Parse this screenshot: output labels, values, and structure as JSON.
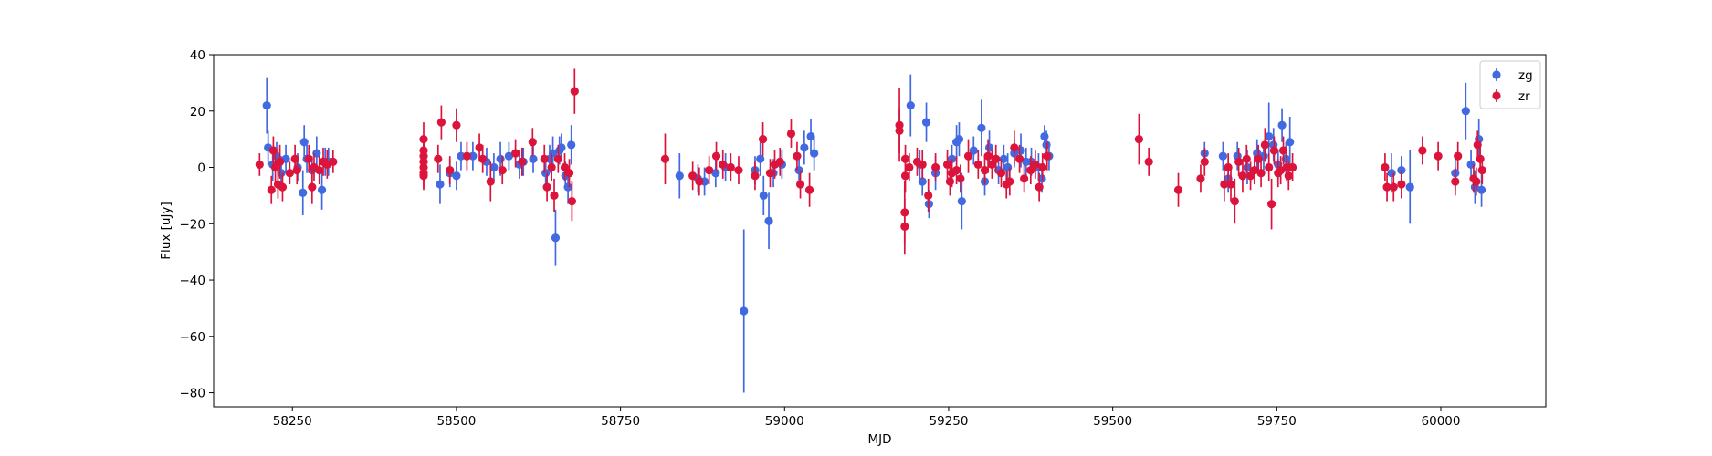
{
  "chart_data": {
    "type": "scatter",
    "title": "",
    "xlabel": "MJD",
    "ylabel": "Flux [uJy]",
    "xlim": [
      58130,
      60160
    ],
    "ylim": [
      -85,
      40
    ],
    "xticks": [
      58250,
      58500,
      58750,
      59000,
      59250,
      59500,
      59750,
      60000
    ],
    "yticks": [
      40,
      20,
      0,
      -20,
      -40,
      -60,
      -80
    ],
    "grid": false,
    "legend_position": "top-right",
    "series": [
      {
        "name": "zg",
        "color": "#4169e1",
        "points": [
          [
            58211,
            22,
            10
          ],
          [
            58213,
            7,
            6
          ],
          [
            58220,
            1,
            6
          ],
          [
            58226,
            4,
            5
          ],
          [
            58233,
            -2,
            6
          ],
          [
            58240,
            3,
            5
          ],
          [
            58258,
            0,
            5
          ],
          [
            58266,
            -9,
            8
          ],
          [
            58268,
            9,
            6
          ],
          [
            58272,
            3,
            5
          ],
          [
            58280,
            -1,
            5
          ],
          [
            58287,
            5,
            6
          ],
          [
            58295,
            -8,
            7
          ],
          [
            58300,
            2,
            5
          ],
          [
            58305,
            2,
            5
          ],
          [
            58475,
            -6,
            7
          ],
          [
            58490,
            -2,
            5
          ],
          [
            58500,
            -3,
            5
          ],
          [
            58507,
            4,
            5
          ],
          [
            58525,
            4,
            5
          ],
          [
            58546,
            2,
            5
          ],
          [
            58557,
            0,
            5
          ],
          [
            58567,
            3,
            6
          ],
          [
            58580,
            4,
            5
          ],
          [
            58596,
            1,
            5
          ],
          [
            58602,
            2,
            5
          ],
          [
            58617,
            3,
            5
          ],
          [
            58636,
            -2,
            6
          ],
          [
            58642,
            3,
            5
          ],
          [
            58647,
            5,
            6
          ],
          [
            58651,
            -25,
            10
          ],
          [
            58657,
            6,
            5
          ],
          [
            58660,
            7,
            5
          ],
          [
            58666,
            -3,
            5
          ],
          [
            58670,
            -7,
            6
          ],
          [
            58675,
            8,
            7
          ],
          [
            58840,
            -3,
            8
          ],
          [
            58868,
            -4,
            5
          ],
          [
            58878,
            -5,
            5
          ],
          [
            58895,
            -2,
            5
          ],
          [
            58910,
            0,
            5
          ],
          [
            58938,
            -51,
            29
          ],
          [
            58955,
            -1,
            5
          ],
          [
            58963,
            3,
            6
          ],
          [
            58968,
            -10,
            7
          ],
          [
            58976,
            -19,
            10
          ],
          [
            58983,
            -2,
            5
          ],
          [
            58996,
            1,
            5
          ],
          [
            59022,
            -1,
            5
          ],
          [
            59030,
            7,
            6
          ],
          [
            59040,
            11,
            6
          ],
          [
            59045,
            5,
            6
          ],
          [
            59192,
            22,
            11
          ],
          [
            59206,
            1,
            5
          ],
          [
            59210,
            -5,
            5
          ],
          [
            59216,
            16,
            7
          ],
          [
            59220,
            -13,
            5
          ],
          [
            59230,
            -2,
            6
          ],
          [
            59255,
            3,
            5
          ],
          [
            59262,
            9,
            6
          ],
          [
            59266,
            10,
            6
          ],
          [
            59270,
            -12,
            10
          ],
          [
            59288,
            6,
            5
          ],
          [
            59300,
            14,
            10
          ],
          [
            59305,
            -5,
            5
          ],
          [
            59312,
            7,
            6
          ],
          [
            59326,
            -1,
            5
          ],
          [
            59334,
            3,
            5
          ],
          [
            59340,
            0,
            5
          ],
          [
            59350,
            5,
            5
          ],
          [
            59360,
            6,
            6
          ],
          [
            59368,
            2,
            5
          ],
          [
            59376,
            2,
            5
          ],
          [
            59387,
            0,
            5
          ],
          [
            59392,
            -4,
            5
          ],
          [
            59396,
            11,
            4
          ],
          [
            59399,
            8,
            5
          ],
          [
            59403,
            4,
            5
          ],
          [
            59640,
            5,
            4
          ],
          [
            59668,
            4,
            5
          ],
          [
            59676,
            -4,
            5
          ],
          [
            59690,
            4,
            5
          ],
          [
            59705,
            0,
            6
          ],
          [
            59720,
            5,
            5
          ],
          [
            59730,
            4,
            5
          ],
          [
            59738,
            11,
            12
          ],
          [
            59745,
            8,
            6
          ],
          [
            59752,
            1,
            5
          ],
          [
            59758,
            15,
            6
          ],
          [
            59764,
            3,
            6
          ],
          [
            59770,
            9,
            9
          ],
          [
            59925,
            -2,
            7
          ],
          [
            59940,
            -1,
            5
          ],
          [
            59953,
            -7,
            13
          ],
          [
            60022,
            -2,
            6
          ],
          [
            60038,
            20,
            10
          ],
          [
            60046,
            1,
            5
          ],
          [
            60052,
            -7,
            6
          ],
          [
            60058,
            10,
            7
          ],
          [
            60062,
            -8,
            6
          ]
        ]
      },
      {
        "name": "zr",
        "color": "#dc143c",
        "points": [
          [
            58200,
            1,
            4
          ],
          [
            58218,
            -8,
            5
          ],
          [
            58221,
            6,
            5
          ],
          [
            58224,
            0,
            5
          ],
          [
            58228,
            -6,
            5
          ],
          [
            58231,
            2,
            6
          ],
          [
            58235,
            -7,
            5
          ],
          [
            58246,
            -2,
            4
          ],
          [
            58254,
            3,
            5
          ],
          [
            58257,
            -1,
            5
          ],
          [
            58275,
            3,
            5
          ],
          [
            58280,
            -7,
            6
          ],
          [
            58283,
            0,
            5
          ],
          [
            58291,
            -1,
            5
          ],
          [
            58297,
            2,
            5
          ],
          [
            58303,
            1,
            5
          ],
          [
            58312,
            2,
            4
          ],
          [
            58450,
            10,
            6
          ],
          [
            58450,
            6,
            5
          ],
          [
            58450,
            4,
            5
          ],
          [
            58450,
            2,
            5
          ],
          [
            58450,
            0,
            5
          ],
          [
            58450,
            -2,
            5
          ],
          [
            58450,
            -3,
            5
          ],
          [
            58472,
            3,
            5
          ],
          [
            58477,
            16,
            6
          ],
          [
            58490,
            -1,
            5
          ],
          [
            58500,
            15,
            6
          ],
          [
            58516,
            4,
            5
          ],
          [
            58535,
            7,
            5
          ],
          [
            58540,
            3,
            5
          ],
          [
            58552,
            -5,
            7
          ],
          [
            58570,
            -1,
            5
          ],
          [
            58590,
            5,
            5
          ],
          [
            58600,
            2,
            5
          ],
          [
            58616,
            9,
            5
          ],
          [
            58634,
            3,
            5
          ],
          [
            58638,
            -7,
            5
          ],
          [
            58645,
            0,
            5
          ],
          [
            58649,
            -10,
            6
          ],
          [
            58655,
            3,
            5
          ],
          [
            58665,
            0,
            5
          ],
          [
            58672,
            -2,
            5
          ],
          [
            58676,
            -12,
            7
          ],
          [
            58680,
            27,
            8
          ],
          [
            58818,
            3,
            9
          ],
          [
            58860,
            -3,
            5
          ],
          [
            58870,
            -5,
            5
          ],
          [
            58885,
            -1,
            5
          ],
          [
            58896,
            4,
            5
          ],
          [
            58906,
            1,
            5
          ],
          [
            58918,
            0,
            5
          ],
          [
            58930,
            -1,
            5
          ],
          [
            58955,
            -3,
            5
          ],
          [
            58967,
            10,
            6
          ],
          [
            58978,
            -2,
            5
          ],
          [
            58985,
            1,
            5
          ],
          [
            58993,
            2,
            5
          ],
          [
            59010,
            12,
            5
          ],
          [
            59019,
            4,
            5
          ],
          [
            59024,
            -6,
            5
          ],
          [
            59038,
            -8,
            6
          ],
          [
            59175,
            15,
            13
          ],
          [
            59175,
            13,
            8
          ],
          [
            59183,
            -21,
            10
          ],
          [
            59183,
            -16,
            11
          ],
          [
            59184,
            -3,
            6
          ],
          [
            59184,
            3,
            5
          ],
          [
            59190,
            0,
            5
          ],
          [
            59202,
            2,
            5
          ],
          [
            59210,
            1,
            5
          ],
          [
            59219,
            -10,
            6
          ],
          [
            59230,
            0,
            5
          ],
          [
            59248,
            1,
            5
          ],
          [
            59252,
            -5,
            5
          ],
          [
            59255,
            -2,
            5
          ],
          [
            59262,
            -1,
            5
          ],
          [
            59268,
            -4,
            5
          ],
          [
            59280,
            4,
            6
          ],
          [
            59295,
            1,
            5
          ],
          [
            59305,
            -1,
            5
          ],
          [
            59310,
            4,
            6
          ],
          [
            59316,
            1,
            5
          ],
          [
            59322,
            3,
            5
          ],
          [
            59330,
            -2,
            5
          ],
          [
            59338,
            -6,
            5
          ],
          [
            59343,
            -5,
            5
          ],
          [
            59350,
            7,
            6
          ],
          [
            59358,
            3,
            5
          ],
          [
            59365,
            -4,
            5
          ],
          [
            59375,
            -1,
            5
          ],
          [
            59382,
            1,
            5
          ],
          [
            59388,
            -7,
            5
          ],
          [
            59393,
            0,
            5
          ],
          [
            59400,
            4,
            5
          ],
          [
            59540,
            10,
            9
          ],
          [
            59555,
            2,
            5
          ],
          [
            59600,
            -8,
            6
          ],
          [
            59634,
            -4,
            5
          ],
          [
            59640,
            2,
            5
          ],
          [
            59670,
            -6,
            6
          ],
          [
            59676,
            0,
            5
          ],
          [
            59680,
            -6,
            6
          ],
          [
            59686,
            -12,
            8
          ],
          [
            59692,
            2,
            5
          ],
          [
            59698,
            -3,
            6
          ],
          [
            59704,
            3,
            5
          ],
          [
            59710,
            -3,
            5
          ],
          [
            59716,
            -1,
            5
          ],
          [
            59722,
            3,
            5
          ],
          [
            59726,
            -2,
            5
          ],
          [
            59732,
            8,
            6
          ],
          [
            59738,
            0,
            5
          ],
          [
            59742,
            -13,
            9
          ],
          [
            59746,
            6,
            5
          ],
          [
            59752,
            -2,
            5
          ],
          [
            59756,
            -1,
            5
          ],
          [
            59760,
            6,
            5
          ],
          [
            59765,
            0,
            5
          ],
          [
            59768,
            -3,
            5
          ],
          [
            59774,
            0,
            5
          ],
          [
            59915,
            0,
            5
          ],
          [
            59918,
            -7,
            5
          ],
          [
            59928,
            -7,
            5
          ],
          [
            59940,
            -6,
            5
          ],
          [
            59972,
            6,
            5
          ],
          [
            59996,
            4,
            5
          ],
          [
            60022,
            -5,
            5
          ],
          [
            60026,
            4,
            5
          ],
          [
            60050,
            -4,
            5
          ],
          [
            60054,
            -5,
            5
          ],
          [
            60056,
            8,
            5
          ],
          [
            60060,
            3,
            5
          ],
          [
            60063,
            -1,
            5
          ]
        ]
      }
    ]
  }
}
